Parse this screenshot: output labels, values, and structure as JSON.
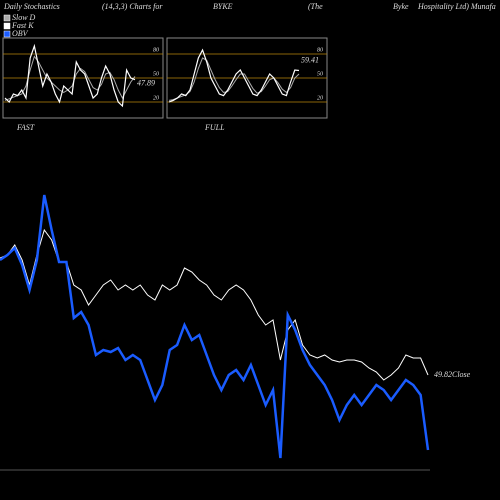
{
  "header": {
    "parts": [
      "Daily Stochastics",
      "(14,3,3) Charts for",
      "BYKE",
      "(The",
      "Byke",
      "Hospitality Ltd) Munafa"
    ]
  },
  "chart_data": [
    {
      "type": "line",
      "xlabel": "FAST",
      "ylim": [
        0,
        100
      ],
      "yticks": [
        80,
        50,
        20
      ],
      "series": [
        {
          "name": "Slow D",
          "color": "#aaaaaa",
          "values": [
            22,
            24,
            26,
            28,
            30,
            40,
            60,
            77,
            70,
            60,
            50,
            45,
            40,
            35,
            32,
            35,
            40,
            55,
            62,
            58,
            48,
            38,
            35,
            42,
            55,
            57,
            48,
            35,
            25,
            35,
            45,
            52
          ]
        },
        {
          "name": "Fast K",
          "color": "#ffffff",
          "values": [
            25,
            20,
            30,
            28,
            35,
            25,
            75,
            90,
            65,
            40,
            55,
            45,
            30,
            20,
            40,
            35,
            30,
            70,
            60,
            55,
            40,
            25,
            30,
            50,
            65,
            55,
            35,
            20,
            15,
            60,
            50,
            47.89
          ]
        }
      ]
    },
    {
      "type": "line",
      "xlabel": "FULL",
      "ylim": [
        0,
        100
      ],
      "yticks": [
        80,
        50,
        20
      ],
      "series": [
        {
          "name": "Slow D",
          "color": "#aaaaaa",
          "values": [
            22,
            23,
            25,
            27,
            29,
            33,
            45,
            62,
            75,
            72,
            60,
            48,
            38,
            32,
            33,
            40,
            48,
            55,
            55,
            46,
            37,
            31,
            33,
            40,
            48,
            50,
            44,
            36,
            32,
            38,
            50,
            55
          ]
        },
        {
          "name": "Fast K",
          "color": "#ffffff",
          "values": [
            20,
            22,
            25,
            30,
            28,
            35,
            55,
            75,
            85,
            70,
            50,
            40,
            30,
            28,
            35,
            45,
            55,
            60,
            50,
            40,
            30,
            28,
            35,
            45,
            55,
            50,
            40,
            30,
            28,
            45,
            60,
            59.41
          ]
        }
      ]
    },
    {
      "type": "line",
      "ylim": [
        0,
        300
      ],
      "annotation": "49.82Close",
      "series": [
        {
          "color": "#ffffff",
          "values": [
            222,
            225,
            235,
            220,
            195,
            225,
            250,
            240,
            218,
            218,
            195,
            190,
            175,
            185,
            195,
            200,
            190,
            195,
            190,
            195,
            185,
            180,
            195,
            190,
            195,
            212,
            208,
            200,
            195,
            185,
            180,
            190,
            195,
            190,
            180,
            165,
            155,
            160,
            120,
            150,
            160,
            135,
            125,
            122,
            125,
            120,
            118,
            120,
            120,
            118,
            112,
            108,
            100,
            105,
            112,
            125,
            122,
            122,
            105
          ]
        },
        {
          "name": "OBV",
          "color": "#1a5cff",
          "values": [
            220,
            225,
            232,
            215,
            190,
            220,
            285,
            250,
            218,
            218,
            162,
            168,
            155,
            125,
            130,
            128,
            132,
            120,
            125,
            120,
            100,
            80,
            95,
            130,
            135,
            155,
            140,
            145,
            125,
            105,
            90,
            105,
            110,
            100,
            115,
            95,
            75,
            90,
            22,
            165,
            150,
            130,
            115,
            105,
            95,
            80,
            60,
            75,
            85,
            75,
            85,
            95,
            90,
            80,
            90,
            100,
            95,
            85,
            30
          ]
        }
      ]
    }
  ]
}
